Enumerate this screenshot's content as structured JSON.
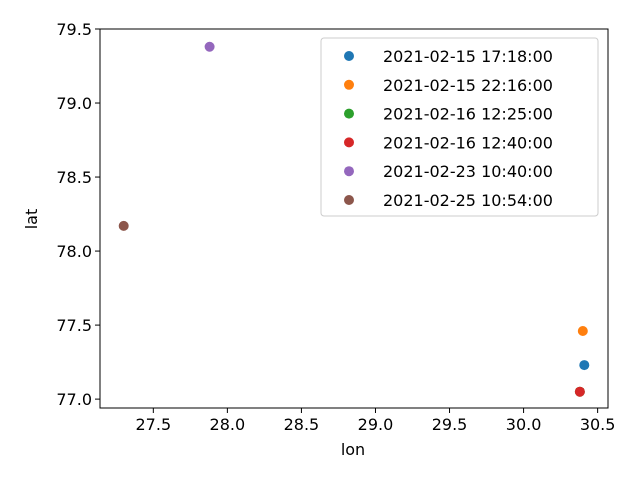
{
  "chart_data": {
    "type": "scatter",
    "xlabel": "lon",
    "ylabel": "lat",
    "xlim": [
      27.14,
      30.57
    ],
    "ylim": [
      76.94,
      79.5
    ],
    "xticks": [
      "27.5",
      "28.0",
      "28.5",
      "29.0",
      "29.5",
      "30.0",
      "30.5"
    ],
    "yticks": [
      "77.0",
      "77.5",
      "78.0",
      "78.5",
      "79.0",
      "79.5"
    ],
    "grid": false,
    "legend_position": "top-right",
    "series": [
      {
        "name": "2021-02-15 17:18:00",
        "color": "#1f77b4",
        "x": [
          30.41
        ],
        "y": [
          77.23
        ]
      },
      {
        "name": "2021-02-15 22:16:00",
        "color": "#ff7f0e",
        "x": [
          30.4
        ],
        "y": [
          77.46
        ]
      },
      {
        "name": "2021-02-16 12:25:00",
        "color": "#2ca02c",
        "x": [
          30.38
        ],
        "y": [
          77.05
        ]
      },
      {
        "name": "2021-02-16 12:40:00",
        "color": "#d62728",
        "x": [
          30.38
        ],
        "y": [
          77.05
        ]
      },
      {
        "name": "2021-02-23 10:40:00",
        "color": "#9467bd",
        "x": [
          27.88
        ],
        "y": [
          79.38
        ]
      },
      {
        "name": "2021-02-25 10:54:00",
        "color": "#8c564b",
        "x": [
          27.3
        ],
        "y": [
          78.17
        ]
      }
    ]
  }
}
